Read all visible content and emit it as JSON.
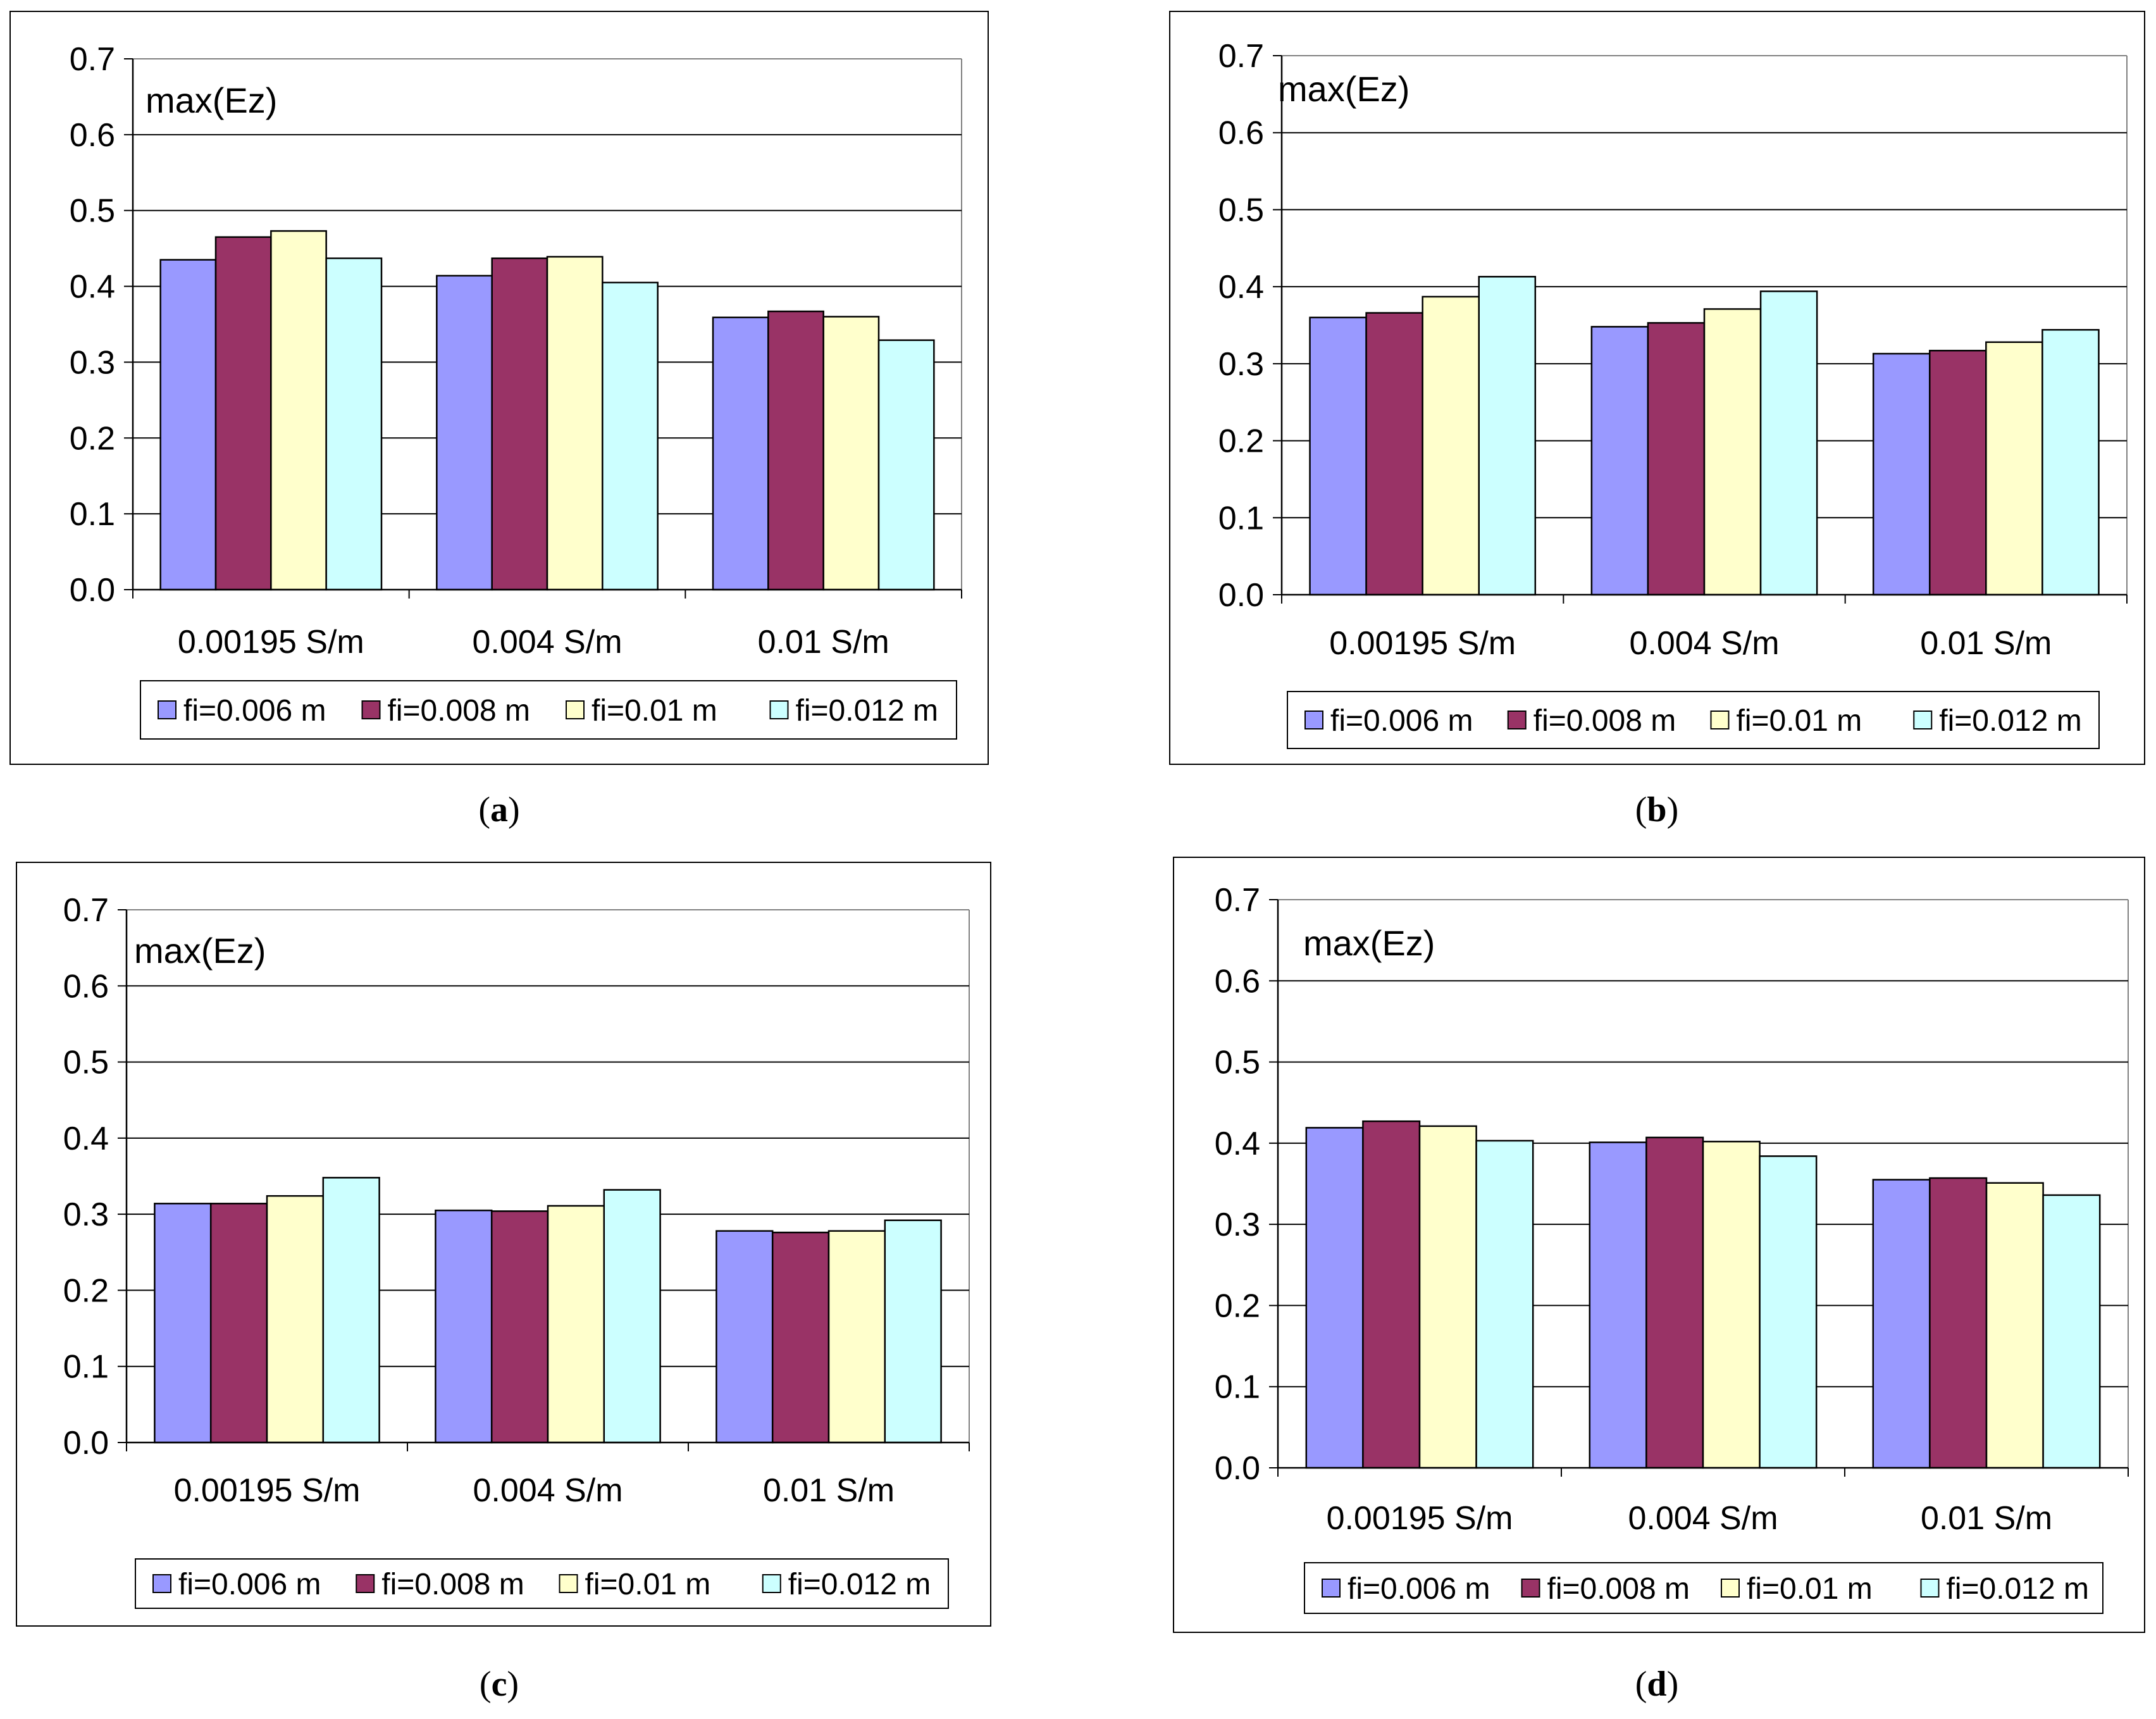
{
  "figure": {
    "panels": [
      "a",
      "b",
      "c",
      "d"
    ]
  },
  "legend_colors": [
    "#9999ff",
    "#993366",
    "#ffffcc",
    "#ccffff"
  ],
  "chart_data": [
    {
      "type": "bar",
      "panel": "a",
      "caption": "a",
      "annotation": "max(Ez)",
      "categories": [
        "0.00195 S/m",
        "0.004 S/m",
        "0.01 S/m"
      ],
      "ylim": [
        0,
        0.7
      ],
      "yticks": [
        "0.0",
        "0.1",
        "0.2",
        "0.3",
        "0.4",
        "0.5",
        "0.6",
        "0.7"
      ],
      "grid": true,
      "legend_position": "bottom",
      "series": [
        {
          "name": "fi=0.006 m",
          "values": [
            0.435,
            0.414,
            0.359
          ]
        },
        {
          "name": "fi=0.008 m",
          "values": [
            0.465,
            0.437,
            0.367
          ]
        },
        {
          "name": "fi=0.01 m",
          "values": [
            0.473,
            0.439,
            0.36
          ]
        },
        {
          "name": "fi=0.012 m",
          "values": [
            0.437,
            0.405,
            0.329
          ]
        }
      ]
    },
    {
      "type": "bar",
      "panel": "b",
      "caption": "b",
      "annotation": "max(Ez)",
      "categories": [
        "0.00195 S/m",
        "0.004 S/m",
        "0.01 S/m"
      ],
      "ylim": [
        0,
        0.7
      ],
      "yticks": [
        "0.0",
        "0.1",
        "0.2",
        "0.3",
        "0.4",
        "0.5",
        "0.6",
        "0.7"
      ],
      "grid": true,
      "legend_position": "bottom",
      "series": [
        {
          "name": "fi=0.006 m",
          "values": [
            0.36,
            0.348,
            0.313
          ]
        },
        {
          "name": "fi=0.008 m",
          "values": [
            0.366,
            0.353,
            0.317
          ]
        },
        {
          "name": "fi=0.01 m",
          "values": [
            0.387,
            0.371,
            0.328
          ]
        },
        {
          "name": "fi=0.012 m",
          "values": [
            0.413,
            0.394,
            0.344
          ]
        }
      ]
    },
    {
      "type": "bar",
      "panel": "c",
      "caption": "c",
      "annotation": "max(Ez)",
      "categories": [
        "0.00195 S/m",
        "0.004 S/m",
        "0.01 S/m"
      ],
      "ylim": [
        0,
        0.7
      ],
      "yticks": [
        "0.0",
        "0.1",
        "0.2",
        "0.3",
        "0.4",
        "0.5",
        "0.6",
        "0.7"
      ],
      "grid": true,
      "legend_position": "bottom",
      "series": [
        {
          "name": "fi=0.006 m",
          "values": [
            0.314,
            0.305,
            0.278
          ]
        },
        {
          "name": "fi=0.008 m",
          "values": [
            0.314,
            0.304,
            0.276
          ]
        },
        {
          "name": "fi=0.01 m",
          "values": [
            0.324,
            0.311,
            0.278
          ]
        },
        {
          "name": "fi=0.012 m",
          "values": [
            0.348,
            0.332,
            0.292
          ]
        }
      ]
    },
    {
      "type": "bar",
      "panel": "d",
      "caption": "d",
      "annotation": "max(Ez)",
      "categories": [
        "0.00195 S/m",
        "0.004 S/m",
        "0.01 S/m"
      ],
      "ylim": [
        0,
        0.7
      ],
      "yticks": [
        "0.0",
        "0.1",
        "0.2",
        "0.3",
        "0.4",
        "0.5",
        "0.6",
        "0.7"
      ],
      "grid": true,
      "legend_position": "bottom",
      "series": [
        {
          "name": "fi=0.006 m",
          "values": [
            0.419,
            0.401,
            0.355
          ]
        },
        {
          "name": "fi=0.008 m",
          "values": [
            0.427,
            0.407,
            0.357
          ]
        },
        {
          "name": "fi=0.01 m",
          "values": [
            0.421,
            0.402,
            0.351
          ]
        },
        {
          "name": "fi=0.012 m",
          "values": [
            0.403,
            0.384,
            0.336
          ]
        }
      ]
    }
  ]
}
